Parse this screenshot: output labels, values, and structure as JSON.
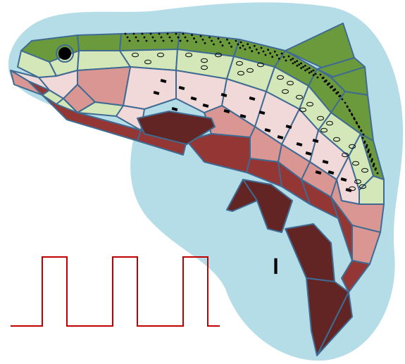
{
  "figure": {
    "glyph": "ٰ",
    "colors": {
      "background_blob": "#b4dde7",
      "outline": "#3f6b93",
      "dorsal_green": "#6b9a3c",
      "upper_light_green": "#d4e7b9",
      "belly_pink": "#f2d9d9",
      "stripe_rose": "#d99693",
      "lower_red": "#943634",
      "dark_maroon": "#632523",
      "eye": "#000000",
      "square_wave": "#c00000",
      "glyph": "#000000"
    },
    "icons": [
      "trout-icon",
      "square-wave-icon"
    ]
  }
}
